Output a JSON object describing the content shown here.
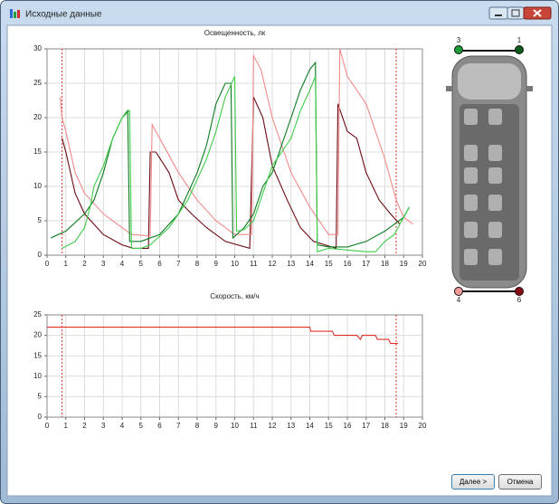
{
  "window": {
    "title": "Исходные данные"
  },
  "buttons": {
    "next": "Далее >",
    "cancel": "Отмена"
  },
  "sensors": {
    "top_left": "3",
    "top_right": "1",
    "bottom_left": "4",
    "bottom_right": "6"
  },
  "chart_data": [
    {
      "type": "line",
      "title": "Освещенность, лк",
      "xlim": [
        0,
        20
      ],
      "xticks": [
        0,
        1,
        2,
        3,
        4,
        5,
        6,
        7,
        8,
        9,
        10,
        11,
        12,
        13,
        14,
        15,
        16,
        17,
        18,
        19,
        20
      ],
      "ylim": [
        0,
        30
      ],
      "yticks": [
        0,
        5,
        10,
        15,
        20,
        25,
        30
      ],
      "grid": true,
      "markers": {
        "color": "#e0302a",
        "x": [
          0.8,
          18.6
        ]
      },
      "series": [
        {
          "color": "#6b0a12",
          "x": [
            0.8,
            1,
            1.5,
            2,
            3,
            4,
            4.6,
            5.4,
            5.5,
            5.8,
            6.5,
            7,
            7.7,
            8.5,
            9.5,
            10.8,
            11,
            11.5,
            12,
            12.8,
            13.5,
            14.2,
            15.4,
            15.5,
            16,
            16.5,
            17,
            17.7,
            18.3,
            18.8
          ],
          "values": [
            17,
            15,
            9,
            6,
            3,
            1.5,
            1,
            1,
            15,
            15,
            12,
            8,
            6,
            4,
            2,
            1,
            23,
            20,
            13,
            8,
            4,
            2,
            1,
            22,
            18,
            17,
            12,
            8,
            6,
            4.5
          ]
        },
        {
          "color": "#f08a8a",
          "x": [
            0.7,
            0.8,
            1,
            1.5,
            2,
            3,
            4,
            4.5,
            5.5,
            5.6,
            6,
            7,
            8,
            9,
            10,
            10.9,
            11,
            11.4,
            12,
            13,
            14,
            15,
            15.5,
            15.6,
            16,
            17,
            18,
            18.6,
            19,
            19.5
          ],
          "values": [
            23,
            20,
            18,
            12,
            9,
            6,
            4,
            3,
            2.8,
            19,
            17,
            12,
            8,
            5,
            3,
            3,
            29,
            27,
            20,
            12,
            7,
            3,
            3,
            30,
            26,
            22,
            14,
            8,
            5.5,
            4.5
          ]
        },
        {
          "color": "#0a7a1e",
          "x": [
            0.2,
            1,
            2,
            2.5,
            3,
            3.5,
            4,
            4.3,
            4.4,
            5,
            6,
            7,
            8,
            8.5,
            9,
            9.5,
            9.8,
            9.9,
            10.5,
            11,
            11.5,
            12,
            12.5,
            13,
            13.5,
            14,
            14.3,
            14.4,
            15,
            16,
            17,
            18,
            19,
            19.3
          ],
          "values": [
            2.5,
            3.5,
            6,
            8,
            12,
            17,
            20,
            21,
            2,
            2,
            3,
            6,
            12,
            16,
            22,
            25,
            25,
            2.5,
            4,
            6,
            10,
            12,
            16,
            20,
            24,
            27,
            28,
            1.5,
            1.2,
            1.2,
            2,
            3.5,
            5.5,
            7
          ]
        },
        {
          "color": "#3fcc4a",
          "x": [
            0.8,
            1.5,
            2,
            2.3,
            2.5,
            3,
            3.5,
            4,
            4.4,
            4.5,
            5,
            5.5,
            6.5,
            7.5,
            8.5,
            9,
            9.5,
            10,
            10.1,
            10.5,
            11,
            11.5,
            12,
            13,
            13.5,
            14,
            14.3,
            14.4,
            15,
            17,
            17.5,
            18,
            18.5,
            19,
            19.3
          ],
          "values": [
            1,
            2,
            4,
            7,
            10,
            13,
            17,
            20,
            21,
            1,
            1,
            1.5,
            4,
            8,
            14,
            18,
            23,
            26,
            3.5,
            3.7,
            5,
            9,
            13,
            17,
            21,
            24,
            26,
            0.5,
            1,
            0.5,
            0.5,
            2,
            3,
            5.5,
            7
          ]
        }
      ]
    },
    {
      "type": "line",
      "title": "Скорость, км/ч",
      "xlim": [
        0,
        20
      ],
      "xticks": [
        0,
        1,
        2,
        3,
        4,
        5,
        6,
        7,
        8,
        9,
        10,
        11,
        12,
        13,
        14,
        15,
        16,
        17,
        18,
        19,
        20
      ],
      "ylim": [
        0,
        25
      ],
      "yticks": [
        0,
        5,
        10,
        15,
        20,
        25
      ],
      "grid": true,
      "markers": {
        "color": "#e0302a",
        "x": [
          0.8,
          18.6
        ]
      },
      "series": [
        {
          "color": "#e0302a",
          "x": [
            0,
            14,
            14.05,
            15.2,
            15.3,
            16.5,
            16.6,
            16.7,
            16.8,
            17.5,
            17.6,
            18.2,
            18.3,
            18.7
          ],
          "values": [
            22,
            22,
            21,
            21,
            20,
            20,
            19.5,
            19,
            20,
            20,
            19,
            19,
            18,
            18
          ]
        }
      ]
    }
  ]
}
